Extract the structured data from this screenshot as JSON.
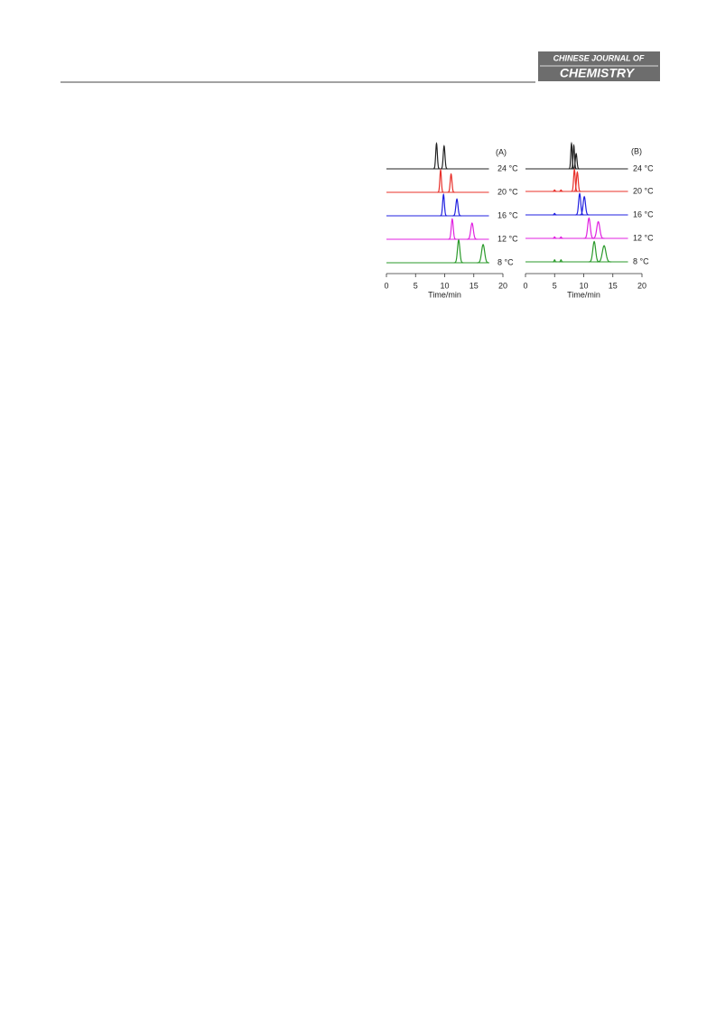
{
  "header": {
    "journal_line1": "CHINESE JOURNAL OF",
    "journal_line2": "CHEMISTRY"
  },
  "chart_data": [
    {
      "type": "chromatogram",
      "panel_label": "(A)",
      "x_label": "Time/min",
      "xlim": [
        0,
        20
      ],
      "xticks": [
        0,
        5,
        10,
        15,
        20
      ],
      "series": [
        {
          "name": "24 °C",
          "color": "#222222",
          "peaks": [
            {
              "time": 8.6,
              "height": 100,
              "width": 0.14
            },
            {
              "time": 9.9,
              "height": 90,
              "width": 0.15
            }
          ]
        },
        {
          "name": "20 °C",
          "color": "#e8302a",
          "peaks": [
            {
              "time": 9.3,
              "height": 88,
              "width": 0.13
            },
            {
              "time": 11.1,
              "height": 72,
              "width": 0.15
            }
          ]
        },
        {
          "name": "16 °C",
          "color": "#2020e0",
          "peaks": [
            {
              "time": 9.8,
              "height": 84,
              "width": 0.15
            },
            {
              "time": 12.1,
              "height": 66,
              "width": 0.18
            }
          ]
        },
        {
          "name": "12 °C",
          "color": "#e020e0",
          "peaks": [
            {
              "time": 11.3,
              "height": 80,
              "width": 0.17
            },
            {
              "time": 14.7,
              "height": 64,
              "width": 0.22
            }
          ]
        },
        {
          "name": "8 °C",
          "color": "#2a9a2a",
          "peaks": [
            {
              "time": 12.4,
              "height": 90,
              "width": 0.2
            },
            {
              "time": 16.6,
              "height": 72,
              "width": 0.26
            }
          ]
        }
      ]
    },
    {
      "type": "chromatogram",
      "panel_label": "(B)",
      "x_label": "Time/min",
      "xlim": [
        0,
        20
      ],
      "xticks": [
        0,
        5,
        10,
        15,
        20
      ],
      "series": [
        {
          "name": "24 °C",
          "color": "#222222",
          "peaks": [
            {
              "time": 7.9,
              "height": 100,
              "width": 0.12
            },
            {
              "time": 8.3,
              "height": 92,
              "width": 0.12
            },
            {
              "time": 8.7,
              "height": 60,
              "width": 0.14
            }
          ]
        },
        {
          "name": "20 °C",
          "color": "#e8302a",
          "peaks": [
            {
              "time": 5.0,
              "height": 6,
              "width": 0.08
            },
            {
              "time": 6.1,
              "height": 6,
              "width": 0.08
            },
            {
              "time": 8.4,
              "height": 86,
              "width": 0.14
            },
            {
              "time": 8.9,
              "height": 76,
              "width": 0.15
            }
          ]
        },
        {
          "name": "16 °C",
          "color": "#2020e0",
          "peaks": [
            {
              "time": 5.0,
              "height": 6,
              "width": 0.08
            },
            {
              "time": 9.3,
              "height": 84,
              "width": 0.18
            },
            {
              "time": 10.1,
              "height": 72,
              "width": 0.2
            }
          ]
        },
        {
          "name": "12 °C",
          "color": "#e020e0",
          "peaks": [
            {
              "time": 5.0,
              "height": 6,
              "width": 0.08
            },
            {
              "time": 6.1,
              "height": 6,
              "width": 0.08
            },
            {
              "time": 10.9,
              "height": 80,
              "width": 0.22
            },
            {
              "time": 12.5,
              "height": 66,
              "width": 0.26
            }
          ]
        },
        {
          "name": "8 °C",
          "color": "#2a9a2a",
          "peaks": [
            {
              "time": 5.0,
              "height": 8,
              "width": 0.08
            },
            {
              "time": 6.1,
              "height": 8,
              "width": 0.08
            },
            {
              "time": 11.8,
              "height": 80,
              "width": 0.24
            },
            {
              "time": 13.5,
              "height": 64,
              "width": 0.3
            }
          ]
        }
      ]
    }
  ]
}
